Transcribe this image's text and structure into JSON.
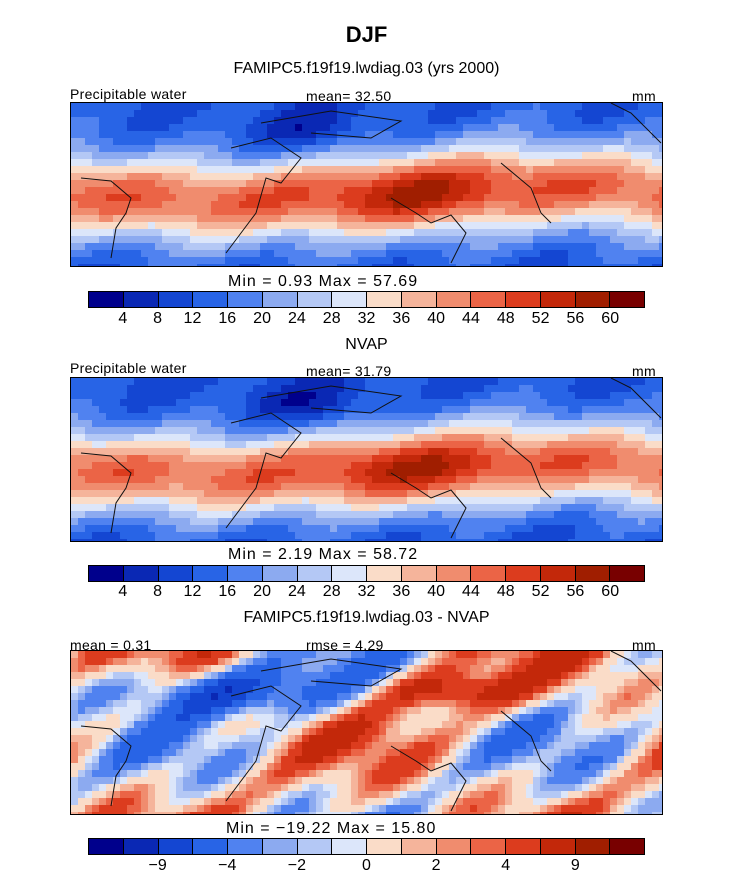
{
  "figure": {
    "title": "DJF",
    "panels": [
      {
        "id": "model",
        "title": "FAMIPC5.f19f19.lwdiag.03 (yrs 2000)",
        "left_label": "Precipitable water",
        "center_label": "mean=  32.50",
        "units": "mm",
        "stats": "Min =    0.93 Max =   57.69"
      },
      {
        "id": "obs",
        "title": "NVAP",
        "left_label": "Precipitable water",
        "center_label": "mean=  31.79",
        "units": "mm",
        "stats": "Min =    2.19 Max =   58.72"
      },
      {
        "id": "diff",
        "title": "FAMIPC5.f19f19.lwdiag.03 - NVAP",
        "left_label": "mean =    0.31",
        "center_label": "rmse =    4.29",
        "units": "mm",
        "stats": "Min = −19.22 Max =   15.80"
      }
    ]
  },
  "chart_data": [
    {
      "type": "heatmap",
      "title": "FAMIPC5.f19f19.lwdiag.03 (yrs 2000)",
      "variable": "Precipitable water",
      "units": "mm",
      "mean": 32.5,
      "min": 0.93,
      "max": 57.69,
      "colorbar_ticks": [
        "4",
        "8",
        "12",
        "16",
        "20",
        "24",
        "28",
        "32",
        "36",
        "40",
        "44",
        "48",
        "52",
        "56",
        "60"
      ],
      "colors": [
        "#00008c",
        "#0a28b4",
        "#1446d2",
        "#2864e6",
        "#5082f0",
        "#8caaf0",
        "#b4c8f5",
        "#dce6fa",
        "#fadcc8",
        "#f5b49b",
        "#f08c6e",
        "#eb6446",
        "#dc3c1e",
        "#c3280a",
        "#a01e00",
        "#780000"
      ]
    },
    {
      "type": "heatmap",
      "title": "NVAP",
      "variable": "Precipitable water",
      "units": "mm",
      "mean": 31.79,
      "min": 2.19,
      "max": 58.72,
      "colorbar_ticks": [
        "4",
        "8",
        "12",
        "16",
        "20",
        "24",
        "28",
        "32",
        "36",
        "40",
        "44",
        "48",
        "52",
        "56",
        "60"
      ],
      "colors": [
        "#00008c",
        "#0a28b4",
        "#1446d2",
        "#2864e6",
        "#5082f0",
        "#8caaf0",
        "#b4c8f5",
        "#dce6fa",
        "#fadcc8",
        "#f5b49b",
        "#f08c6e",
        "#eb6446",
        "#dc3c1e",
        "#c3280a",
        "#a01e00",
        "#780000"
      ]
    },
    {
      "type": "heatmap",
      "title": "FAMIPC5.f19f19.lwdiag.03 - NVAP",
      "units": "mm",
      "mean": 0.31,
      "rmse": 4.29,
      "min": -19.22,
      "max": 15.8,
      "colorbar_ticks": [
        "−9",
        "−4",
        "−2",
        "0",
        "2",
        "4",
        "9"
      ],
      "colorbar_tick_boundaries": [
        2,
        4,
        6,
        8,
        10,
        12,
        14
      ],
      "colors": [
        "#00008c",
        "#0a28b4",
        "#1446d2",
        "#2864e6",
        "#5082f0",
        "#8caaf0",
        "#b4c8f5",
        "#dce6fa",
        "#fadcc8",
        "#f5b49b",
        "#f08c6e",
        "#eb6446",
        "#dc3c1e",
        "#c3280a",
        "#a01e00",
        "#780000"
      ]
    }
  ]
}
